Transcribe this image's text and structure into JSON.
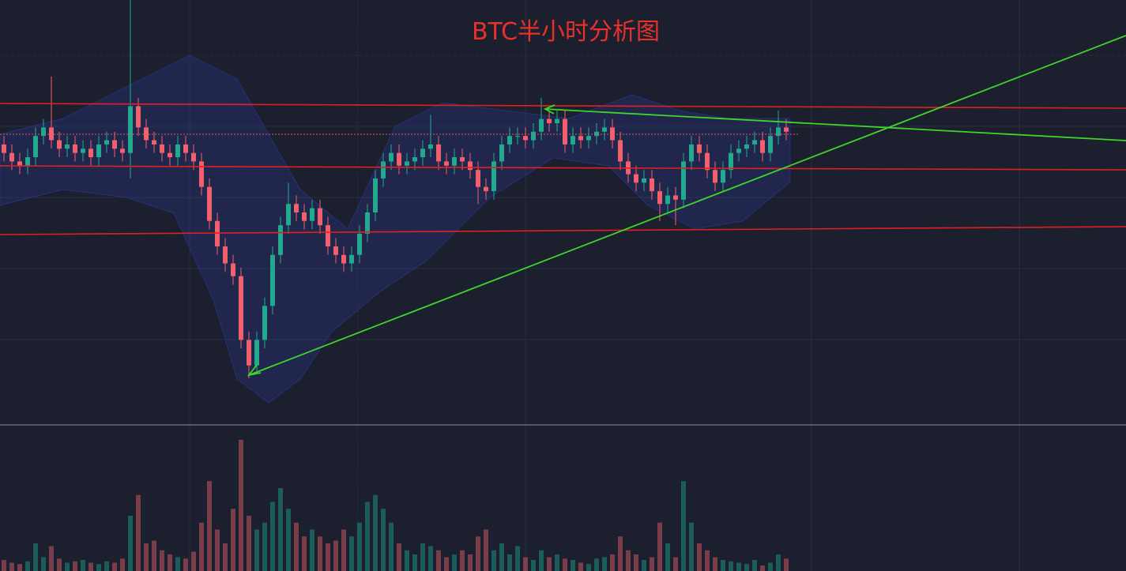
{
  "chart_data": {
    "type": "candlestick",
    "title": "BTC半小时分析图",
    "up_color": "#22a88f",
    "down_color": "#f0616d",
    "ylim": [
      0,
      100
    ],
    "vlim": [
      0,
      100
    ],
    "open": [
      66,
      64,
      62,
      61,
      63,
      68,
      70,
      67,
      65,
      66,
      64,
      65,
      63,
      66,
      67,
      65,
      64,
      75,
      70,
      67,
      66,
      64,
      63,
      66,
      64,
      62,
      56,
      48,
      42,
      38,
      35,
      20,
      14,
      20,
      28,
      40,
      47,
      52,
      50,
      48,
      51,
      47,
      42,
      40,
      38,
      40,
      45,
      50,
      58,
      62,
      64,
      61,
      62,
      63,
      65,
      66,
      62,
      61,
      63,
      62,
      60,
      56,
      55,
      62,
      66,
      68,
      68,
      67,
      69,
      72,
      71,
      72,
      66,
      68,
      67,
      68,
      69,
      70,
      67,
      62,
      59,
      57,
      58,
      55,
      52,
      54,
      53,
      62,
      66,
      64,
      60,
      57,
      60,
      64,
      65,
      66,
      67,
      64,
      68,
      70
    ],
    "high": [
      68,
      66,
      64,
      65,
      70,
      72,
      82,
      69,
      68,
      68,
      67,
      67,
      68,
      69,
      69,
      67,
      100,
      77,
      72,
      69,
      68,
      66,
      68,
      68,
      66,
      64,
      58,
      50,
      44,
      40,
      37,
      22,
      22,
      30,
      42,
      49,
      57,
      54,
      52,
      53,
      53,
      49,
      44,
      42,
      42,
      47,
      52,
      60,
      64,
      66,
      66,
      64,
      65,
      67,
      73,
      68,
      64,
      65,
      65,
      64,
      62,
      58,
      64,
      68,
      70,
      70,
      70,
      71,
      77,
      74,
      74,
      74,
      70,
      70,
      70,
      71,
      72,
      72,
      69,
      64,
      61,
      60,
      60,
      57,
      56,
      56,
      64,
      68,
      68,
      66,
      62,
      62,
      66,
      67,
      68,
      69,
      69,
      70,
      74,
      72
    ],
    "low": [
      62,
      60,
      59,
      59,
      61,
      66,
      65,
      63,
      63,
      62,
      62,
      61,
      61,
      64,
      63,
      62,
      58,
      68,
      65,
      64,
      62,
      61,
      61,
      62,
      60,
      54,
      46,
      40,
      36,
      33,
      18,
      11,
      12,
      18,
      26,
      38,
      45,
      48,
      46,
      46,
      45,
      40,
      38,
      36,
      36,
      38,
      43,
      48,
      56,
      60,
      59,
      59,
      60,
      61,
      63,
      60,
      59,
      59,
      60,
      58,
      52,
      53,
      53,
      60,
      64,
      66,
      65,
      65,
      67,
      69,
      69,
      64,
      64,
      65,
      65,
      66,
      67,
      65,
      60,
      57,
      55,
      55,
      53,
      48,
      50,
      47,
      51,
      60,
      62,
      58,
      55,
      55,
      58,
      62,
      63,
      64,
      62,
      62,
      66,
      67
    ],
    "close": [
      64,
      62,
      61,
      63,
      68,
      70,
      67,
      65,
      66,
      64,
      65,
      63,
      66,
      67,
      65,
      64,
      75,
      70,
      67,
      66,
      64,
      63,
      66,
      64,
      62,
      56,
      48,
      42,
      38,
      35,
      20,
      14,
      20,
      28,
      40,
      47,
      52,
      50,
      48,
      51,
      47,
      42,
      40,
      38,
      40,
      45,
      50,
      58,
      62,
      64,
      61,
      62,
      63,
      65,
      66,
      62,
      61,
      63,
      62,
      60,
      56,
      55,
      62,
      66,
      68,
      68,
      67,
      69,
      72,
      71,
      72,
      66,
      68,
      67,
      68,
      69,
      70,
      67,
      62,
      59,
      57,
      58,
      55,
      52,
      54,
      53,
      62,
      66,
      64,
      60,
      57,
      60,
      64,
      65,
      66,
      67,
      64,
      68,
      70,
      69
    ],
    "volume": [
      8,
      6,
      5,
      7,
      20,
      10,
      18,
      9,
      6,
      7,
      8,
      6,
      5,
      7,
      6,
      9,
      40,
      55,
      20,
      22,
      15,
      12,
      10,
      9,
      14,
      35,
      65,
      30,
      20,
      45,
      95,
      40,
      30,
      35,
      50,
      60,
      45,
      35,
      25,
      30,
      25,
      20,
      22,
      30,
      25,
      35,
      50,
      55,
      45,
      35,
      20,
      15,
      12,
      20,
      18,
      15,
      10,
      12,
      15,
      12,
      25,
      30,
      15,
      20,
      12,
      18,
      10,
      8,
      15,
      10,
      12,
      9,
      8,
      6,
      5,
      9,
      10,
      12,
      25,
      15,
      12,
      8,
      10,
      35,
      20,
      10,
      65,
      35,
      20,
      15,
      10,
      8,
      7,
      6,
      5,
      8,
      4,
      6,
      12,
      9
    ]
  }
}
